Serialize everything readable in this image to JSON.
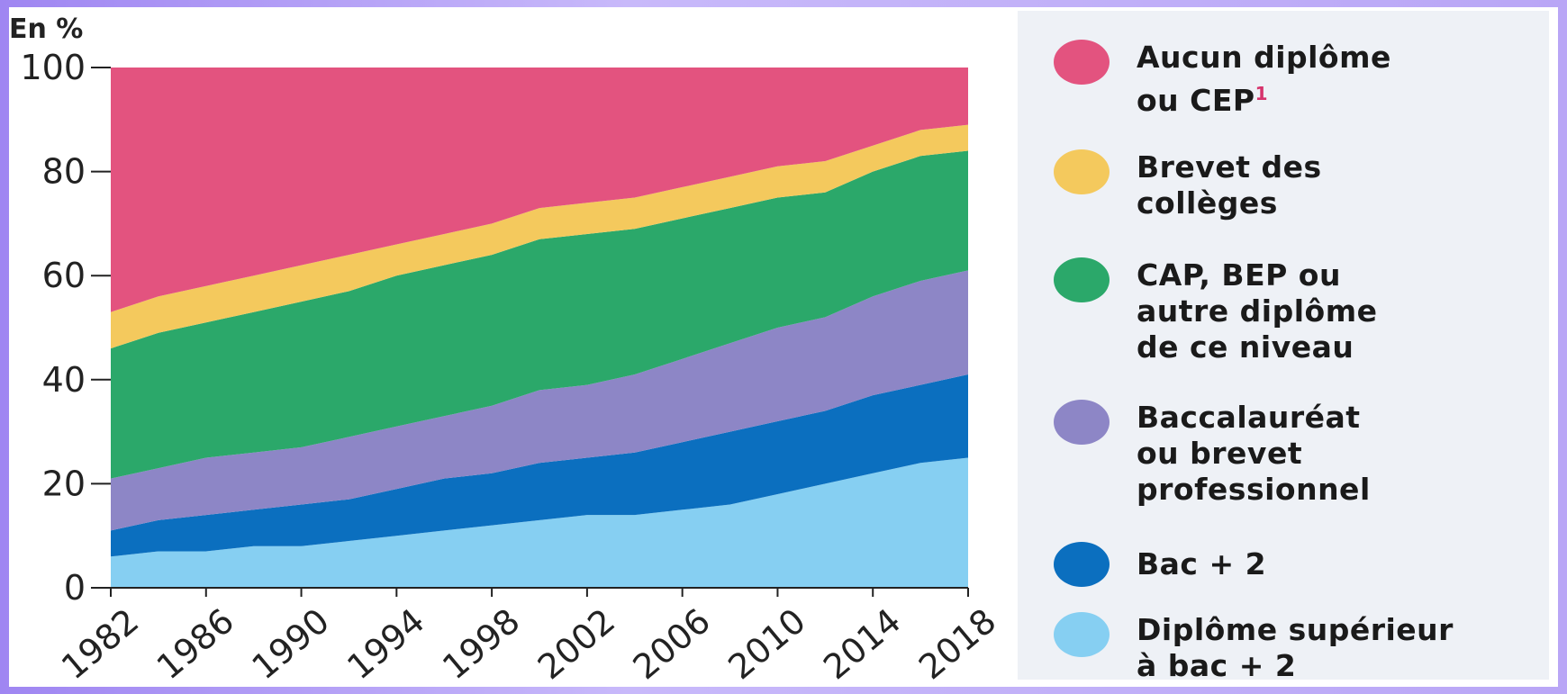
{
  "chart_data": {
    "type": "area",
    "stacked": true,
    "unit_label": "En %",
    "ylim": [
      0,
      100
    ],
    "y_ticks": [
      0,
      20,
      40,
      60,
      80,
      100
    ],
    "x_ticks": [
      "1982",
      "1986",
      "1990",
      "1994",
      "1998",
      "2002",
      "2006",
      "2010",
      "2014",
      "2018"
    ],
    "x": [
      1982,
      1984,
      1986,
      1988,
      1990,
      1992,
      1994,
      1996,
      1998,
      2000,
      2002,
      2004,
      2006,
      2008,
      2010,
      2012,
      2014,
      2016,
      2018
    ],
    "series": [
      {
        "name": "Diplôme supérieur à bac + 2",
        "color": "#86cff2",
        "values": [
          6,
          7,
          7,
          8,
          8,
          9,
          10,
          11,
          12,
          13,
          14,
          14,
          15,
          16,
          18,
          20,
          22,
          24,
          25
        ]
      },
      {
        "name": "Bac + 2",
        "color": "#0b6fbf",
        "values": [
          5,
          6,
          7,
          7,
          8,
          8,
          9,
          10,
          10,
          11,
          11,
          12,
          13,
          14,
          14,
          14,
          15,
          15,
          16
        ]
      },
      {
        "name": "Baccalauréat ou brevet professionnel",
        "color": "#8d86c6",
        "values": [
          10,
          10,
          11,
          11,
          11,
          12,
          12,
          12,
          13,
          14,
          14,
          15,
          16,
          17,
          18,
          18,
          19,
          20,
          20
        ]
      },
      {
        "name": "CAP, BEP ou autre diplôme de ce niveau",
        "color": "#2ba86a",
        "values": [
          25,
          26,
          26,
          27,
          28,
          28,
          29,
          29,
          29,
          29,
          29,
          28,
          27,
          26,
          25,
          24,
          24,
          24,
          23
        ]
      },
      {
        "name": "Brevet des collèges",
        "color": "#f4c95d",
        "values": [
          7,
          7,
          7,
          7,
          7,
          7,
          6,
          6,
          6,
          6,
          6,
          6,
          6,
          6,
          6,
          6,
          5,
          5,
          5
        ]
      },
      {
        "name": "Aucun diplôme ou CEP",
        "color": "#e3537f",
        "values": [
          47,
          44,
          42,
          40,
          38,
          36,
          34,
          32,
          30,
          27,
          26,
          25,
          23,
          21,
          19,
          18,
          15,
          12,
          11
        ]
      }
    ]
  },
  "legend": {
    "items": [
      {
        "label_main": "Aucun diplôme\nou CEP",
        "footnote": "1",
        "color": "#e3537f"
      },
      {
        "label_main": "Brevet des\ncollèges",
        "footnote": "",
        "color": "#f4c95d"
      },
      {
        "label_main": "CAP, BEP ou\nautre diplôme\nde ce niveau",
        "footnote": "",
        "color": "#2ba86a"
      },
      {
        "label_main": "Baccalauréat\nou brevet\nprofessionnel",
        "footnote": "",
        "color": "#8d86c6"
      },
      {
        "label_main": "Bac + 2",
        "footnote": "",
        "color": "#0b6fbf"
      },
      {
        "label_main": "Diplôme supérieur\nà bac + 2",
        "footnote": "",
        "color": "#86cff2"
      }
    ]
  }
}
